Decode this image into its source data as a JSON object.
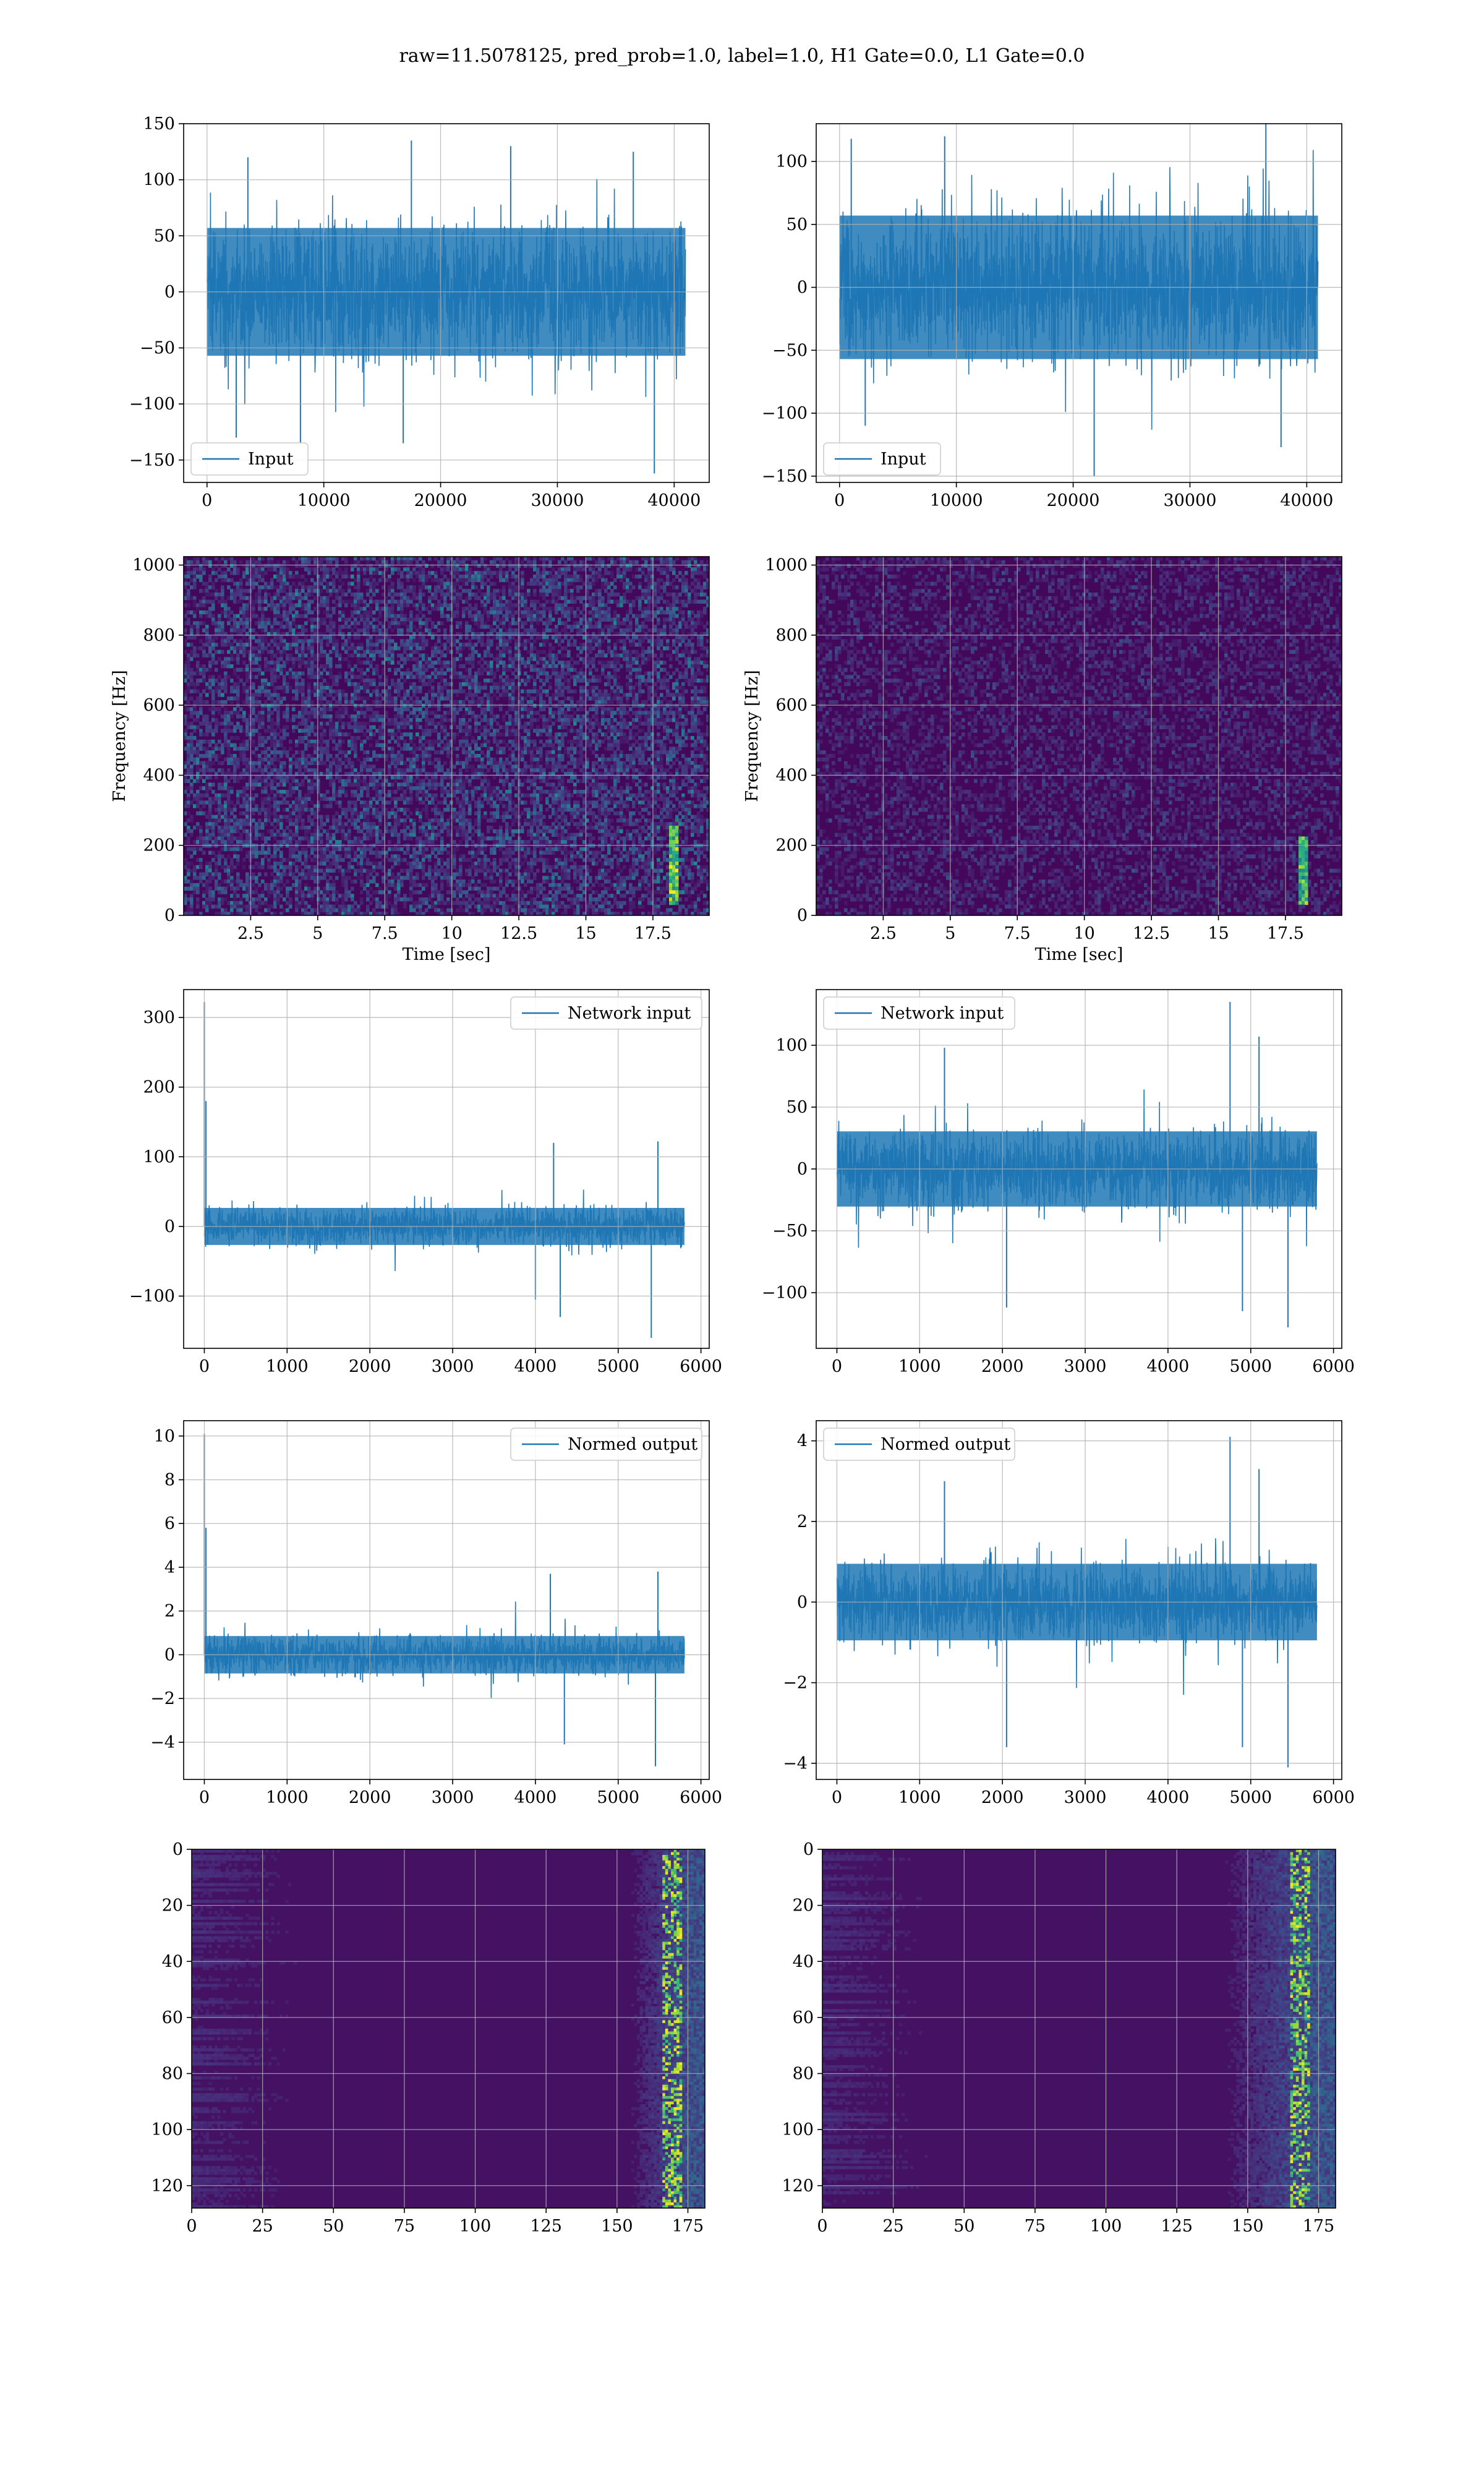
{
  "figure": {
    "title": "raw=11.5078125, pred_prob=1.0, label=1.0, H1 Gate=0.0, L1 Gate=0.0"
  },
  "colors": {
    "line": "#1f77b4",
    "grid": "#b0b0b0",
    "viridis_low": "#440154",
    "viridis_mid": "#21918c",
    "viridis_high": "#fde725"
  },
  "chart_data": [
    {
      "id": "h1-input",
      "type": "line",
      "xlim": [
        -2000,
        43000
      ],
      "ylim": [
        -170,
        150
      ],
      "xticks": [
        0,
        10000,
        20000,
        30000,
        40000
      ],
      "yticks": [
        -150,
        -100,
        -50,
        0,
        50,
        100,
        150
      ],
      "xlabel": "",
      "ylabel": "",
      "legend": "lower-left",
      "series": [
        {
          "name": "Input",
          "n_points": 40960,
          "x_start": 0,
          "x_end": 40960,
          "envelope": {
            "typical_amplitude": 60,
            "max": 135,
            "min": -162
          },
          "spikes": [
            [
              3500,
              120
            ],
            [
              17500,
              135
            ],
            [
              26000,
              130
            ],
            [
              36500,
              125
            ],
            [
              38300,
              -162
            ],
            [
              8000,
              -135
            ],
            [
              16800,
              -135
            ],
            [
              2500,
              -130
            ]
          ]
        }
      ],
      "grid": true
    },
    {
      "id": "l1-input",
      "type": "line",
      "xlim": [
        -2000,
        43000
      ],
      "ylim": [
        -155,
        130
      ],
      "xticks": [
        0,
        10000,
        20000,
        30000,
        40000
      ],
      "yticks": [
        -150,
        -100,
        -50,
        0,
        50,
        100
      ],
      "xlabel": "",
      "ylabel": "",
      "legend": "lower-left",
      "series": [
        {
          "name": "Input",
          "n_points": 40960,
          "x_start": 0,
          "x_end": 40960,
          "envelope": {
            "typical_amplitude": 60,
            "max": 132,
            "min": -150
          },
          "spikes": [
            [
              36500,
              132
            ],
            [
              1000,
              118
            ],
            [
              9000,
              120
            ],
            [
              21800,
              -150
            ],
            [
              37800,
              -127
            ],
            [
              2200,
              -110
            ]
          ]
        }
      ],
      "grid": true
    },
    {
      "id": "h1-spectrogram",
      "type": "heatmap",
      "xlim": [
        0,
        19.6
      ],
      "ylim": [
        0,
        1024
      ],
      "xticks": [
        2.5,
        5.0,
        7.5,
        10.0,
        12.5,
        15.0,
        17.5
      ],
      "yticks": [
        0,
        200,
        400,
        600,
        800,
        1000
      ],
      "xlabel": "Time [sec]",
      "ylabel": "Frequency [Hz]",
      "colormap": "viridis",
      "background_level": 0.15,
      "chirp": {
        "t": 18.3,
        "f_min": 30,
        "f_max": 260
      },
      "grid": true
    },
    {
      "id": "l1-spectrogram",
      "type": "heatmap",
      "xlim": [
        0,
        19.6
      ],
      "ylim": [
        0,
        1024
      ],
      "xticks": [
        2.5,
        5.0,
        7.5,
        10.0,
        12.5,
        15.0,
        17.5
      ],
      "yticks": [
        0,
        200,
        400,
        600,
        800,
        1000
      ],
      "xlabel": "Time [sec]",
      "ylabel": "Frequency [Hz]",
      "colormap": "viridis",
      "background_level": 0.08,
      "chirp": {
        "t": 18.2,
        "f_min": 30,
        "f_max": 230
      },
      "grid": true
    },
    {
      "id": "h1-network-input",
      "type": "line",
      "xlim": [
        -250,
        6100
      ],
      "ylim": [
        -175,
        340
      ],
      "xticks": [
        0,
        1000,
        2000,
        3000,
        4000,
        5000,
        6000
      ],
      "yticks": [
        -100,
        0,
        100,
        200,
        300
      ],
      "xlabel": "",
      "ylabel": "",
      "legend": "top-right",
      "series": [
        {
          "name": "Network input",
          "n_points": 5800,
          "x_start": 0,
          "x_end": 5800,
          "envelope": {
            "typical_amplitude": 28,
            "max": 322,
            "min": -160
          },
          "spikes": [
            [
              0,
              322
            ],
            [
              20,
              180
            ],
            [
              4220,
              120
            ],
            [
              5480,
              122
            ],
            [
              4000,
              -105
            ],
            [
              5400,
              -160
            ],
            [
              4300,
              -130
            ]
          ]
        }
      ],
      "grid": true
    },
    {
      "id": "l1-network-input",
      "type": "line",
      "xlim": [
        -250,
        6100
      ],
      "ylim": [
        -145,
        145
      ],
      "xticks": [
        0,
        1000,
        2000,
        3000,
        4000,
        5000,
        6000
      ],
      "yticks": [
        -100,
        -50,
        0,
        50,
        100
      ],
      "xlabel": "",
      "ylabel": "",
      "legend": "top-left",
      "series": [
        {
          "name": "Network input",
          "n_points": 5800,
          "x_start": 0,
          "x_end": 5800,
          "envelope": {
            "typical_amplitude": 32,
            "max": 135,
            "min": -128
          },
          "spikes": [
            [
              4750,
              135
            ],
            [
              5100,
              107
            ],
            [
              1300,
              98
            ],
            [
              5450,
              -128
            ],
            [
              2050,
              -112
            ],
            [
              4900,
              -115
            ]
          ]
        }
      ],
      "grid": true
    },
    {
      "id": "h1-normed-output",
      "type": "line",
      "xlim": [
        -250,
        6100
      ],
      "ylim": [
        -5.7,
        10.7
      ],
      "xticks": [
        0,
        1000,
        2000,
        3000,
        4000,
        5000,
        6000
      ],
      "yticks": [
        -4,
        -2,
        0,
        2,
        4,
        6,
        8,
        10
      ],
      "xlabel": "",
      "ylabel": "",
      "legend": "top-right",
      "series": [
        {
          "name": "Normed output",
          "n_points": 5800,
          "x_start": 0,
          "x_end": 5800,
          "envelope": {
            "typical_amplitude": 0.9,
            "max": 10.1,
            "min": -5.1
          },
          "spikes": [
            [
              0,
              10.1
            ],
            [
              20,
              5.8
            ],
            [
              5480,
              3.8
            ],
            [
              4180,
              3.7
            ],
            [
              5450,
              -5.1
            ],
            [
              4350,
              -4.1
            ]
          ]
        }
      ],
      "grid": true
    },
    {
      "id": "l1-normed-output",
      "type": "line",
      "xlim": [
        -250,
        6100
      ],
      "ylim": [
        -4.4,
        4.5
      ],
      "xticks": [
        0,
        1000,
        2000,
        3000,
        4000,
        5000,
        6000
      ],
      "yticks": [
        -4,
        -2,
        0,
        2,
        4
      ],
      "xlabel": "",
      "ylabel": "",
      "legend": "top-left",
      "series": [
        {
          "name": "Normed output",
          "n_points": 5800,
          "x_start": 0,
          "x_end": 5800,
          "envelope": {
            "typical_amplitude": 1.0,
            "max": 4.1,
            "min": -4.1
          },
          "spikes": [
            [
              4750,
              4.1
            ],
            [
              5100,
              3.3
            ],
            [
              1300,
              3.0
            ],
            [
              5450,
              -4.1
            ],
            [
              2050,
              -3.6
            ],
            [
              4900,
              -3.6
            ]
          ]
        }
      ],
      "grid": true
    },
    {
      "id": "h1-feature-map",
      "type": "heatmap",
      "xlim": [
        0,
        181
      ],
      "ylim": [
        128,
        0
      ],
      "xticks": [
        0,
        25,
        50,
        75,
        100,
        125,
        150,
        175
      ],
      "yticks": [
        0,
        20,
        40,
        60,
        80,
        100,
        120
      ],
      "xlabel": "",
      "ylabel": "",
      "colormap": "viridis",
      "rows": 128,
      "cols": 181,
      "activation_start_col": 150,
      "hot_col": 169,
      "grid": true
    },
    {
      "id": "l1-feature-map",
      "type": "heatmap",
      "xlim": [
        0,
        181
      ],
      "ylim": [
        128,
        0
      ],
      "xticks": [
        0,
        25,
        50,
        75,
        100,
        125,
        150,
        175
      ],
      "yticks": [
        0,
        20,
        40,
        60,
        80,
        100,
        120
      ],
      "xlabel": "",
      "ylabel": "",
      "colormap": "viridis",
      "rows": 128,
      "cols": 181,
      "activation_start_col": 135,
      "hot_col": 168,
      "grid": true
    }
  ]
}
